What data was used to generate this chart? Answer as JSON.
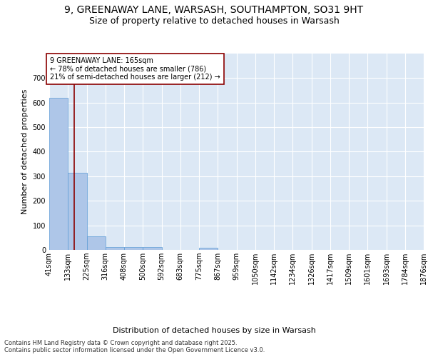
{
  "title1": "9, GREENAWAY LANE, WARSASH, SOUTHAMPTON, SO31 9HT",
  "title2": "Size of property relative to detached houses in Warsash",
  "xlabel": "Distribution of detached houses by size in Warsash",
  "ylabel": "Number of detached properties",
  "bin_edges": [
    41,
    133,
    225,
    316,
    408,
    500,
    592,
    683,
    775,
    867,
    959,
    1050,
    1142,
    1234,
    1326,
    1417,
    1509,
    1601,
    1693,
    1784,
    1876
  ],
  "bar_heights": [
    620,
    315,
    55,
    12,
    12,
    12,
    0,
    0,
    8,
    0,
    0,
    0,
    0,
    0,
    0,
    0,
    0,
    0,
    0,
    0
  ],
  "bar_color": "#aec6e8",
  "bar_edge_color": "#5b9bd5",
  "property_line_x": 165,
  "property_line_color": "#8b0000",
  "annotation_text": "9 GREENAWAY LANE: 165sqm\n← 78% of detached houses are smaller (786)\n21% of semi-detached houses are larger (212) →",
  "annotation_box_color": "#ffffff",
  "annotation_border_color": "#8b0000",
  "ylim": [
    0,
    800
  ],
  "yticks": [
    0,
    100,
    200,
    300,
    400,
    500,
    600,
    700
  ],
  "bg_color": "#dce8f5",
  "grid_color": "#ffffff",
  "footer_text": "Contains HM Land Registry data © Crown copyright and database right 2025.\nContains public sector information licensed under the Open Government Licence v3.0.",
  "title1_fontsize": 10,
  "title2_fontsize": 9,
  "tick_fontsize": 7,
  "ylabel_fontsize": 8,
  "xlabel_fontsize": 8,
  "footer_fontsize": 6,
  "annotation_fontsize": 7
}
